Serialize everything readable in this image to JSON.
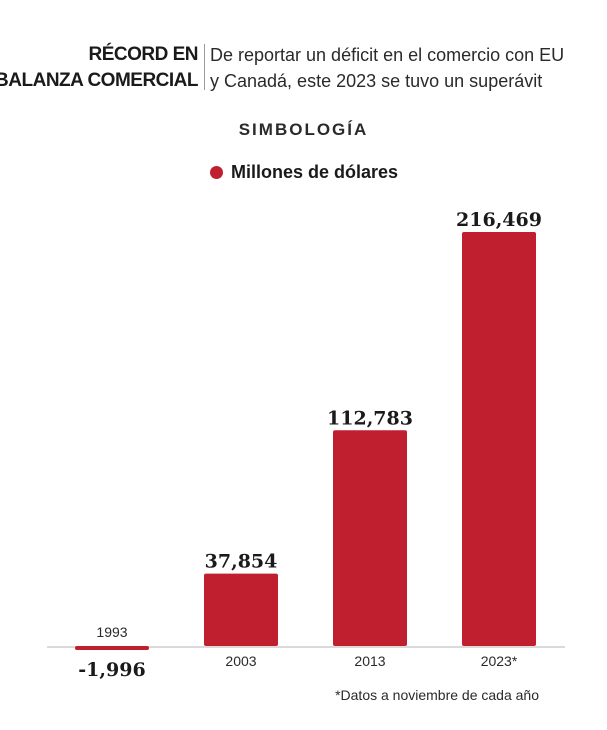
{
  "header": {
    "kicker_line1": "RÉCORD EN",
    "kicker_line2": "BALANZA COMERCIAL",
    "subtitle_line1": "De reportar un déficit en el comercio con EU",
    "subtitle_line2": "y Canadá, este 2023 se tuvo un superávit"
  },
  "legend": {
    "title": "SIMBOLOGÍA",
    "item_label": "Millones de dólares"
  },
  "footnote": "*Datos a noviembre de cada año",
  "colors": {
    "bar": "#c01f2f",
    "baseline": "#b5b5b5"
  },
  "chart_data": {
    "type": "bar",
    "categories": [
      "1993",
      "2003",
      "2013",
      "2023*"
    ],
    "values": [
      -1996,
      37854,
      112783,
      216469
    ],
    "value_labels": [
      "-1,996",
      "37,854",
      "112,783",
      "216,469"
    ],
    "legend": [
      "Millones de dólares"
    ],
    "ylim": [
      -1996,
      216469
    ],
    "grid": false,
    "legend_position": "top-center"
  }
}
